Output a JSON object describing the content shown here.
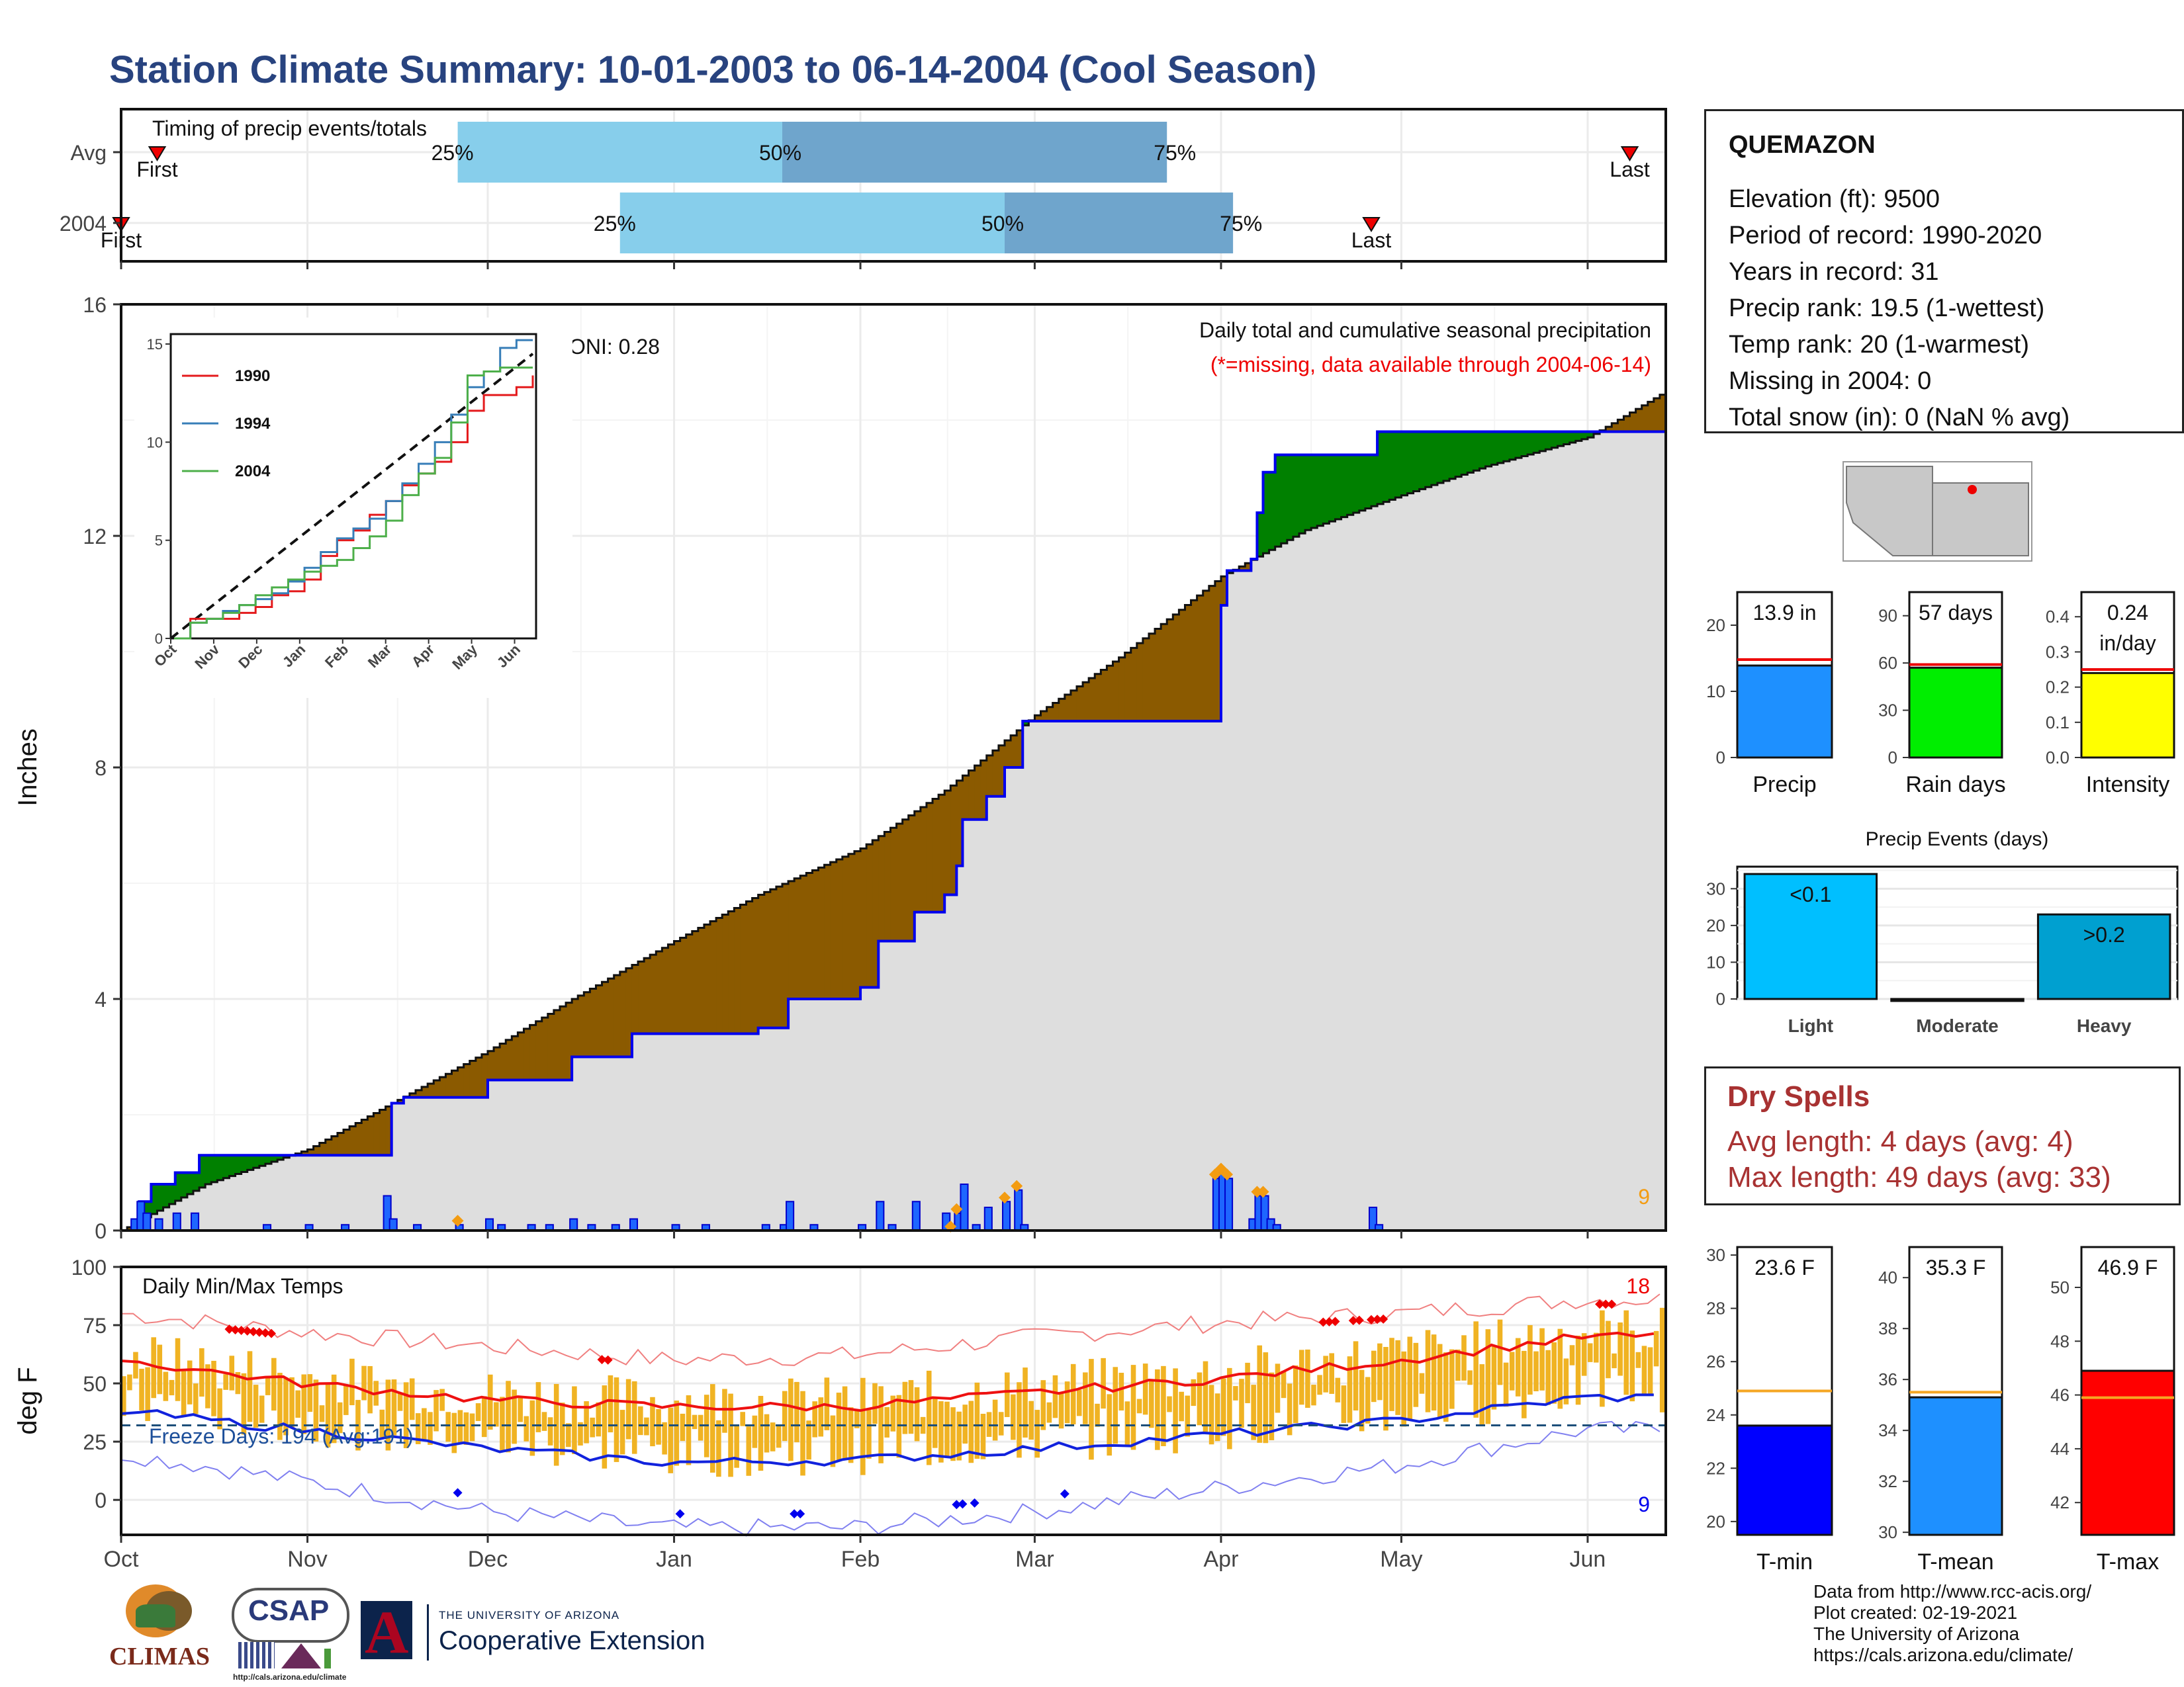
{
  "title": "Station Climate Summary: 10-01-2003 to 06-14-2004 (Cool Season)",
  "station": {
    "name": "QUEMAZON",
    "lines": [
      "Elevation (ft): 9500",
      "Period of record: 1990-2020",
      "Years in record: 31",
      "Precip rank: 19.5 (1-wettest)",
      "Temp rank: 20 (1-warmest)",
      "Missing in 2004: 0",
      "Total snow (in): 0 (NaN % avg)"
    ]
  },
  "dry_spells": {
    "title": "Dry Spells",
    "avg": "Avg length: 4 days (avg: 4)",
    "max": "Max length: 49 days (avg: 33)"
  },
  "footer": [
    "Data from http://www.rcc-acis.org/",
    "Plot created: 02-19-2021",
    "The University of Arizona",
    "https://cals.arizona.edu/climate/"
  ],
  "logos": {
    "climas": "CLIMAS",
    "csap": "CSAP",
    "csap_url": "http://cals.arizona.edu/climate",
    "ua_small": "THE UNIVERSITY OF ARIZONA",
    "ua_big": "Cooperative Extension"
  },
  "colors": {
    "above_avg": "#008000",
    "below_avg": "#8b5a00",
    "normal_fill": "#dedede",
    "obs_line": "#0000ee",
    "bar_light": "#87ceeb",
    "bar_dark": "#6fa5cc",
    "temp_bar": "#f0b323",
    "max_line": "#ee1111",
    "min_line": "#1122dd"
  },
  "chart_data": [
    {
      "type": "bar",
      "id": "timing",
      "title": "Timing of precip events/totals",
      "rows": [
        {
          "label": "Avg",
          "q25": "2003-11-26",
          "q50": "2004-01-19",
          "q75": "2004-03-23",
          "first": "2003-10-07",
          "last": "2004-06-08",
          "first_label": "First",
          "last_label": "Last"
        },
        {
          "label": "2004",
          "q25": "2003-12-23",
          "q50": "2004-02-25",
          "q75": "2004-04-03",
          "first": "2003-10-01",
          "last": "2004-04-26",
          "first_label": "First",
          "last_label": "Last"
        }
      ],
      "pct_labels": [
        "25%",
        "50%",
        "75%"
      ]
    },
    {
      "type": "area",
      "id": "precip",
      "title": "Daily total and cumulative seasonal precipitation",
      "subtitle": "(*=missing, data available through 2004-06-14)",
      "ylabel": "Inches",
      "ylim": [
        0,
        16
      ],
      "yticks": [
        0,
        4,
        8,
        12,
        16
      ],
      "oni": "ONI: 0.28",
      "count_label": "9",
      "x_start": "2003-10-01",
      "x_end": "2004-06-14",
      "cumulative_observed": [
        [
          "2003-10-01",
          0.0
        ],
        [
          "2003-10-04",
          0.5
        ],
        [
          "2003-10-06",
          0.8
        ],
        [
          "2003-10-10",
          1.0
        ],
        [
          "2003-10-14",
          1.3
        ],
        [
          "2003-11-14",
          1.3
        ],
        [
          "2003-11-15",
          2.2
        ],
        [
          "2003-11-17",
          2.3
        ],
        [
          "2003-12-01",
          2.6
        ],
        [
          "2003-12-15",
          3.0
        ],
        [
          "2003-12-25",
          3.4
        ],
        [
          "2004-01-15",
          3.5
        ],
        [
          "2004-01-20",
          4.0
        ],
        [
          "2004-02-01",
          4.2
        ],
        [
          "2004-02-04",
          5.0
        ],
        [
          "2004-02-10",
          5.5
        ],
        [
          "2004-02-15",
          5.8
        ],
        [
          "2004-02-17",
          6.3
        ],
        [
          "2004-02-18",
          7.1
        ],
        [
          "2004-02-22",
          7.5
        ],
        [
          "2004-02-25",
          8.0
        ],
        [
          "2004-02-28",
          8.8
        ],
        [
          "2004-03-31",
          8.8
        ],
        [
          "2004-04-01",
          10.8
        ],
        [
          "2004-04-02",
          11.4
        ],
        [
          "2004-04-06",
          11.6
        ],
        [
          "2004-04-07",
          12.4
        ],
        [
          "2004-04-08",
          13.1
        ],
        [
          "2004-04-10",
          13.4
        ],
        [
          "2004-04-26",
          13.4
        ],
        [
          "2004-04-27",
          13.8
        ],
        [
          "2004-06-14",
          13.8
        ]
      ],
      "cumulative_normal": [
        [
          "2003-10-01",
          0.0
        ],
        [
          "2003-10-15",
          0.8
        ],
        [
          "2003-11-01",
          1.4
        ],
        [
          "2003-11-15",
          2.2
        ],
        [
          "2003-12-01",
          3.1
        ],
        [
          "2003-12-15",
          4.0
        ],
        [
          "2004-01-01",
          5.0
        ],
        [
          "2004-01-15",
          5.8
        ],
        [
          "2004-02-01",
          6.6
        ],
        [
          "2004-02-15",
          7.6
        ],
        [
          "2004-03-01",
          8.9
        ],
        [
          "2004-03-15",
          9.9
        ],
        [
          "2004-04-01",
          11.3
        ],
        [
          "2004-04-15",
          12.1
        ],
        [
          "2004-05-01",
          12.7
        ],
        [
          "2004-05-15",
          13.2
        ],
        [
          "2004-06-01",
          13.7
        ],
        [
          "2004-06-14",
          14.5
        ]
      ],
      "daily_bars": [
        [
          "2003-10-03",
          0.2
        ],
        [
          "2003-10-04",
          0.5
        ],
        [
          "2003-10-05",
          0.3
        ],
        [
          "2003-10-07",
          0.2
        ],
        [
          "2003-10-10",
          0.3
        ],
        [
          "2003-10-13",
          0.3
        ],
        [
          "2003-10-25",
          0.1
        ],
        [
          "2003-11-01",
          0.1
        ],
        [
          "2003-11-07",
          0.1
        ],
        [
          "2003-11-14",
          0.6
        ],
        [
          "2003-11-15",
          0.2
        ],
        [
          "2003-11-19",
          0.1
        ],
        [
          "2003-11-26",
          0.1
        ],
        [
          "2003-12-01",
          0.2
        ],
        [
          "2003-12-03",
          0.1
        ],
        [
          "2003-12-08",
          0.1
        ],
        [
          "2003-12-11",
          0.1
        ],
        [
          "2003-12-15",
          0.2
        ],
        [
          "2003-12-18",
          0.1
        ],
        [
          "2003-12-22",
          0.1
        ],
        [
          "2003-12-25",
          0.2
        ],
        [
          "2004-01-01",
          0.1
        ],
        [
          "2004-01-06",
          0.1
        ],
        [
          "2004-01-16",
          0.1
        ],
        [
          "2004-01-19",
          0.1
        ],
        [
          "2004-01-20",
          0.5
        ],
        [
          "2004-01-24",
          0.1
        ],
        [
          "2004-02-01",
          0.1
        ],
        [
          "2004-02-04",
          0.5
        ],
        [
          "2004-02-06",
          0.1
        ],
        [
          "2004-02-10",
          0.5
        ],
        [
          "2004-02-15",
          0.3
        ],
        [
          "2004-02-17",
          0.3
        ],
        [
          "2004-02-18",
          0.8
        ],
        [
          "2004-02-20",
          0.1
        ],
        [
          "2004-02-22",
          0.4
        ],
        [
          "2004-02-25",
          0.5
        ],
        [
          "2004-02-27",
          0.7
        ],
        [
          "2004-02-28",
          0.1
        ],
        [
          "2004-03-31",
          0.9
        ],
        [
          "2004-04-01",
          1.0
        ],
        [
          "2004-04-02",
          0.9
        ],
        [
          "2004-04-06",
          0.2
        ],
        [
          "2004-04-07",
          0.6
        ],
        [
          "2004-04-08",
          0.6
        ],
        [
          "2004-04-09",
          0.2
        ],
        [
          "2004-04-10",
          0.1
        ],
        [
          "2004-04-26",
          0.4
        ],
        [
          "2004-04-27",
          0.1
        ]
      ],
      "extreme_markers": [
        "2003-11-26",
        "2004-02-16",
        "2004-02-17",
        "2004-02-25",
        "2004-02-27",
        "2004-03-31",
        "2004-04-01",
        "2004-04-02",
        "2004-04-07",
        "2004-04-08"
      ],
      "xticks": [
        "Oct",
        "Nov",
        "Dec",
        "Jan",
        "Feb",
        "Mar",
        "Apr",
        "May",
        "Jun"
      ]
    },
    {
      "type": "line",
      "id": "inset",
      "x_labels": [
        "Oct",
        "Nov",
        "Dec",
        "Jan",
        "Feb",
        "Mar",
        "Apr",
        "May",
        "Jun"
      ],
      "ylim": [
        0,
        15
      ],
      "yticks": [
        0,
        5,
        10,
        15
      ],
      "series": [
        {
          "name": "1990",
          "color": "#e41a1c",
          "values": [
            0,
            1.0,
            1.0,
            1.0,
            1.3,
            1.6,
            2.2,
            2.4,
            3.0,
            4.2,
            5.0,
            5.5,
            6.3,
            7.0,
            7.8,
            8.4,
            9.0,
            10.0,
            11.6,
            12.4,
            12.4,
            12.8,
            13.4
          ]
        },
        {
          "name": "1994",
          "color": "#377eb8",
          "values": [
            0,
            0.8,
            1.0,
            1.4,
            1.7,
            2.0,
            2.3,
            2.9,
            3.6,
            4.4,
            5.1,
            5.6,
            6.1,
            7.0,
            7.9,
            8.9,
            10.0,
            11.4,
            12.8,
            13.6,
            14.8,
            15.2,
            15.2
          ]
        },
        {
          "name": "2004",
          "color": "#4daf4a",
          "values": [
            0,
            0.8,
            1.0,
            1.3,
            1.7,
            2.2,
            2.6,
            3.0,
            3.4,
            3.7,
            4.0,
            4.6,
            5.2,
            6.0,
            7.3,
            8.4,
            9.2,
            11.0,
            13.4,
            13.6,
            13.8,
            13.8,
            13.8
          ]
        }
      ],
      "avg_line": [
        0,
        14.5
      ]
    },
    {
      "type": "bar",
      "id": "temps",
      "title": "Daily Min/Max Temps",
      "ylabel": "deg F",
      "ylim": [
        -15,
        100
      ],
      "yticks": [
        0,
        25,
        50,
        75,
        100
      ],
      "freeze_label": "Freeze Days: 194 (Avg:191)",
      "freeze_line": 32,
      "max_count_label": "18",
      "min_count_label": "9",
      "xticks": [
        "Oct",
        "Nov",
        "Dec",
        "Jan",
        "Feb",
        "Mar",
        "Apr",
        "May",
        "Jun"
      ],
      "avg_max": [
        [
          "Oct",
          60
        ],
        [
          "Nov",
          50
        ],
        [
          "Dec",
          43
        ],
        [
          "Jan",
          40
        ],
        [
          "Feb",
          40
        ],
        [
          "Mar",
          46
        ],
        [
          "Apr",
          52
        ],
        [
          "May",
          60
        ],
        [
          "Jun",
          70
        ]
      ],
      "avg_min": [
        [
          "Oct",
          38
        ],
        [
          "Nov",
          30
        ],
        [
          "Dec",
          22
        ],
        [
          "Jan",
          16
        ],
        [
          "Feb",
          17
        ],
        [
          "Mar",
          22
        ],
        [
          "Apr",
          28
        ],
        [
          "May",
          34
        ],
        [
          "Jun",
          44
        ]
      ],
      "record_max": [
        [
          "Oct",
          80
        ],
        [
          "Nov",
          72
        ],
        [
          "Dec",
          66
        ],
        [
          "Jan",
          60
        ],
        [
          "Feb",
          62
        ],
        [
          "Mar",
          70
        ],
        [
          "Apr",
          76
        ],
        [
          "May",
          80
        ],
        [
          "Jun",
          86
        ]
      ],
      "record_min": [
        [
          "Oct",
          20
        ],
        [
          "Nov",
          8
        ],
        [
          "Dec",
          -5
        ],
        [
          "Jan",
          -12
        ],
        [
          "Feb",
          -12
        ],
        [
          "Mar",
          -5
        ],
        [
          "Apr",
          5
        ],
        [
          "May",
          15
        ],
        [
          "Jun",
          30
        ]
      ]
    },
    {
      "type": "bar",
      "id": "season_bars",
      "panels": [
        {
          "label": "Precip",
          "value": 13.9,
          "value_label": "13.9 in",
          "avg": 14.8,
          "color": "#1e90ff",
          "ylim": [
            0,
            25
          ],
          "yticks": [
            0,
            10,
            20
          ]
        },
        {
          "label": "Rain days",
          "value": 57,
          "value_label": "57 days",
          "avg": 59,
          "color": "#00ee00",
          "ylim": [
            0,
            105
          ],
          "yticks": [
            0,
            30,
            60,
            90
          ]
        },
        {
          "label": "Intensity",
          "value": 0.24,
          "value_label": "0.24",
          "value_label2": "in/day",
          "avg": 0.25,
          "color": "#ffff00",
          "ylim": [
            0,
            0.47
          ],
          "yticks": [
            0.0,
            0.1,
            0.2,
            0.3,
            0.4
          ]
        }
      ]
    },
    {
      "type": "bar",
      "id": "precip_events",
      "title": "Precip Events (days)",
      "categories": [
        "Light",
        "Moderate",
        "Heavy"
      ],
      "values": [
        34,
        0,
        23
      ],
      "bar_labels": [
        "<0.1",
        "",
        ">0.2"
      ],
      "colors": [
        "#00bfff",
        "#00bfff",
        "#00a0d0"
      ],
      "ylim": [
        0,
        36
      ],
      "yticks": [
        0,
        10,
        20,
        30
      ]
    },
    {
      "type": "bar",
      "id": "temp_bars",
      "panels": [
        {
          "label": "T-min",
          "value": 23.6,
          "value_label": "23.6 F",
          "avg": 24.9,
          "color": "#0000ff",
          "ylim": [
            19.5,
            30.3
          ],
          "yticks": [
            20,
            22,
            24,
            26,
            28,
            30
          ]
        },
        {
          "label": "T-mean",
          "value": 35.3,
          "value_label": "35.3 F",
          "avg": 35.5,
          "color": "#1e90ff",
          "ylim": [
            29.9,
            41.2
          ],
          "yticks": [
            30,
            32,
            34,
            36,
            38,
            40
          ]
        },
        {
          "label": "T-max",
          "value": 46.9,
          "value_label": "46.9 F",
          "avg": 45.9,
          "color": "#ff0000",
          "ylim": [
            40.8,
            51.5
          ],
          "yticks": [
            42,
            44,
            46,
            48,
            50
          ]
        }
      ]
    }
  ]
}
